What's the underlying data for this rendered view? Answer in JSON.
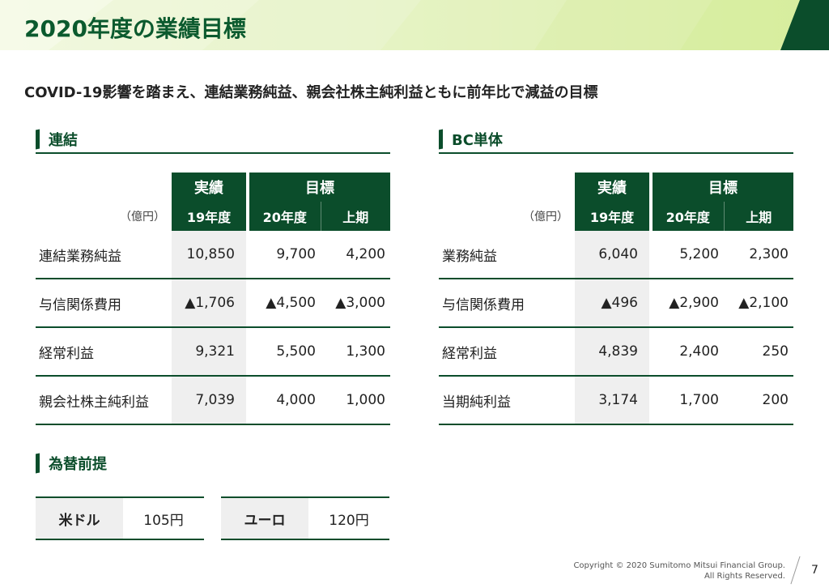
{
  "header": {
    "title": "2020年度の業績目標"
  },
  "subtitle": "COVID-19影響を踏まえ、連結業務純益、親会社株主純利益ともに前年比で減益の目標",
  "consolidated": {
    "section_label": "連結",
    "unit": "（億円）",
    "head_actual": "実績",
    "head_target": "目標",
    "col_19": "19年度",
    "col_20": "20年度",
    "col_h1": "上期",
    "rows": [
      {
        "name": "連結業務純益",
        "v19": "10,850",
        "v20": "9,700",
        "h1": "4,200"
      },
      {
        "name": "与信関係費用",
        "v19": "▲1,706",
        "v20": "▲4,500",
        "h1": "▲3,000"
      },
      {
        "name": "経常利益",
        "v19": "9,321",
        "v20": "5,500",
        "h1": "1,300"
      },
      {
        "name": "親会社株主純利益",
        "v19": "7,039",
        "v20": "4,000",
        "h1": "1,000"
      }
    ]
  },
  "bc": {
    "section_label": "BC単体",
    "unit": "（億円）",
    "head_actual": "実績",
    "head_target": "目標",
    "col_19": "19年度",
    "col_20": "20年度",
    "col_h1": "上期",
    "rows": [
      {
        "name": "業務純益",
        "v19": "6,040",
        "v20": "5,200",
        "h1": "2,300"
      },
      {
        "name": "与信関係費用",
        "v19": "▲496",
        "v20": "▲2,900",
        "h1": "▲2,100"
      },
      {
        "name": "経常利益",
        "v19": "4,839",
        "v20": "2,400",
        "h1": "250"
      },
      {
        "name": "当期純利益",
        "v19": "3,174",
        "v20": "1,700",
        "h1": "200"
      }
    ]
  },
  "fx": {
    "section_label": "為替前提",
    "usd_label": "米ドル",
    "usd_value": "105円",
    "eur_label": "ユーロ",
    "eur_value": "120円"
  },
  "footer": {
    "copyright_line1": "Copyright © 2020 Sumitomo Mitsui Financial Group.",
    "copyright_line2": "All Rights Reserved.",
    "page_number": "7"
  },
  "colors": {
    "brand_green": "#0b4d2b",
    "title_green": "#0b5a2e",
    "header_bg": "#e6f3c6",
    "cell_gray": "#efefef"
  }
}
